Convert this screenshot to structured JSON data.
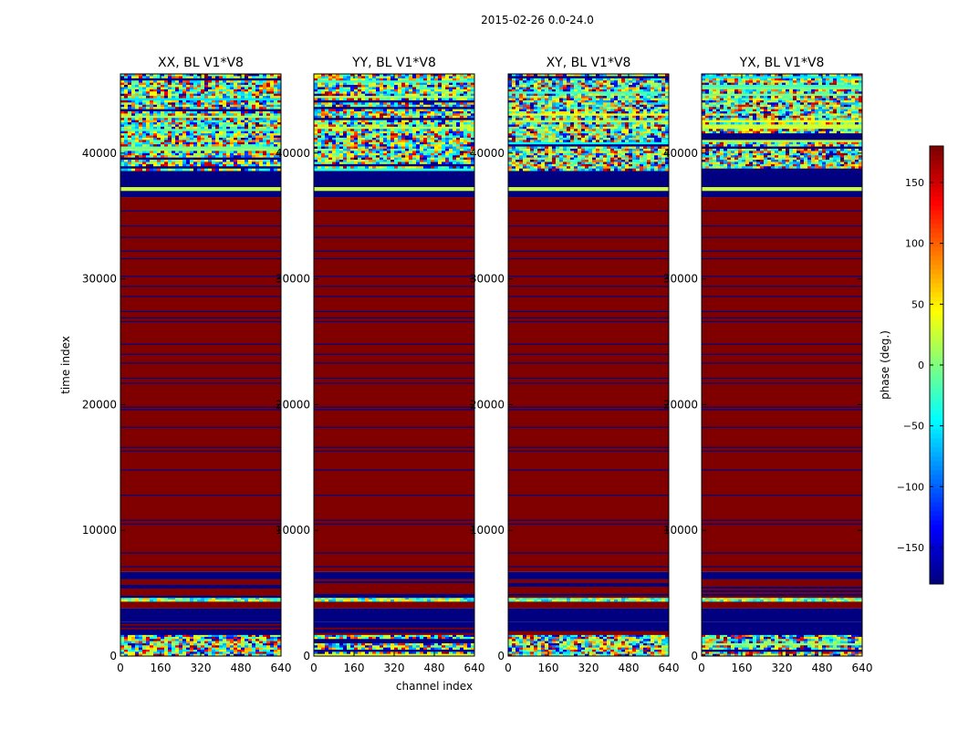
{
  "figure": {
    "suptitle": "2015-02-26 0.0-24.0",
    "ylabel": "time index",
    "xlabel": "channel index"
  },
  "chart_data": {
    "type": "heatmap",
    "panels": [
      {
        "title": "XX, BL V1*V8",
        "seed": 11
      },
      {
        "title": "YY, BL V1*V8",
        "seed": 23
      },
      {
        "title": "XY, BL V1*V8",
        "seed": 37
      },
      {
        "title": "YX, BL V1*V8",
        "seed": 51
      }
    ],
    "x_range": [
      0,
      640
    ],
    "x_ticks": [
      0,
      160,
      320,
      480,
      640
    ],
    "y_range": [
      0,
      46300
    ],
    "y_ticks": [
      0,
      10000,
      20000,
      30000,
      40000
    ],
    "colorbar": {
      "label": "phase (deg.)",
      "range": [
        -180,
        180
      ],
      "ticks": [
        -150,
        -100,
        -50,
        0,
        50,
        100,
        150
      ],
      "colormap": "jet"
    },
    "row_bands": [
      {
        "from": 0,
        "to": 1700,
        "fill": "noise"
      },
      {
        "from": 1700,
        "to": 2700,
        "fill": "mostly_low"
      },
      {
        "from": 2700,
        "to": 3800,
        "fill": "low"
      },
      {
        "from": 3800,
        "to": 4350,
        "fill": "high"
      },
      {
        "from": 4350,
        "to": 4650,
        "fill": "noise_bright"
      },
      {
        "from": 4650,
        "to": 6100,
        "fill": "mostly_high"
      },
      {
        "from": 6100,
        "to": 6700,
        "fill": "low"
      },
      {
        "from": 6700,
        "to": 36500,
        "fill": "high_with_lines"
      },
      {
        "from": 36500,
        "to": 37000,
        "fill": "low"
      },
      {
        "from": 37000,
        "to": 37300,
        "fill": "yellow"
      },
      {
        "from": 37300,
        "to": 38600,
        "fill": "low"
      },
      {
        "from": 38600,
        "to": 46300,
        "fill": "noise"
      }
    ],
    "horizontal_line_rows": [
      7100,
      8200,
      10500,
      10800,
      12800,
      14800,
      16300,
      16600,
      18200,
      19600,
      19800,
      21700,
      22100,
      23300,
      24000,
      24800,
      26600,
      26900,
      27400,
      28600,
      29400,
      30200,
      31600,
      32200,
      33300,
      34200,
      35400
    ]
  },
  "colors": {
    "high": "#800000",
    "low": "#000080"
  }
}
